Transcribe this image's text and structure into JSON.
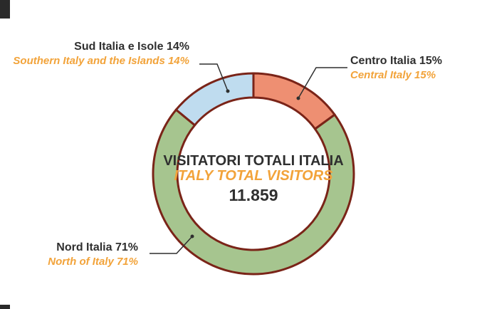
{
  "chart_data": {
    "type": "pie",
    "variant": "donut",
    "center": {
      "title_it": "VISITATORI TOTALI ITALIA",
      "title_en": "ITALY TOTAL VISITORS",
      "total": "11.859"
    },
    "slices": [
      {
        "name_it": "Centro Italia",
        "name_en": "Central Italy",
        "value": 15,
        "pct_label": "15%",
        "color": "#ee8f72"
      },
      {
        "name_it": "Nord Italia",
        "name_en": "North of Italy",
        "value": 71,
        "pct_label": "71%",
        "color": "#a6c58f"
      },
      {
        "name_it": "Sud Italia e Isole",
        "name_en": "Southern Italy and the Islands",
        "value": 14,
        "pct_label": "14%",
        "color": "#bfdcef"
      }
    ],
    "ring_border_color": "#7a2418",
    "leader_color": "#2f2f2f"
  }
}
